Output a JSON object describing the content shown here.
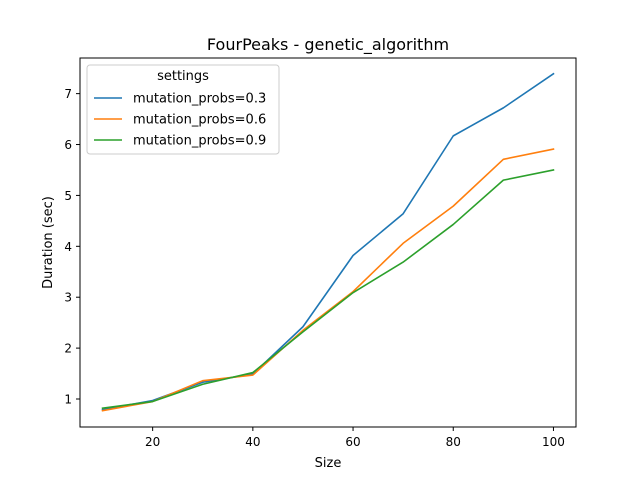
{
  "chart_data": {
    "type": "line",
    "title": "FourPeaks - genetic_algorithm",
    "xlabel": "Size",
    "ylabel": "Duration (sec)",
    "xlim": [
      5.5,
      104.5
    ],
    "ylim": [
      0.45,
      7.7
    ],
    "xticks": [
      20,
      40,
      60,
      80,
      100
    ],
    "yticks": [
      1,
      2,
      3,
      4,
      5,
      6,
      7
    ],
    "grid": false,
    "legend": {
      "title": "settings",
      "placement": "top-left"
    },
    "x": [
      10,
      20,
      30,
      40,
      50,
      60,
      70,
      80,
      90,
      100
    ],
    "series": [
      {
        "name": "mutation_probs=0.3",
        "color": "#1f77b4",
        "values": [
          0.79,
          0.97,
          1.33,
          1.49,
          2.42,
          3.82,
          4.64,
          6.17,
          6.72,
          7.39
        ]
      },
      {
        "name": "mutation_probs=0.6",
        "color": "#ff7f0e",
        "values": [
          0.77,
          0.95,
          1.36,
          1.47,
          2.35,
          3.11,
          4.06,
          4.79,
          5.71,
          5.91
        ]
      },
      {
        "name": "mutation_probs=0.9",
        "color": "#2ca02c",
        "values": [
          0.82,
          0.95,
          1.29,
          1.52,
          2.32,
          3.09,
          3.69,
          4.43,
          5.3,
          5.5
        ]
      }
    ]
  }
}
